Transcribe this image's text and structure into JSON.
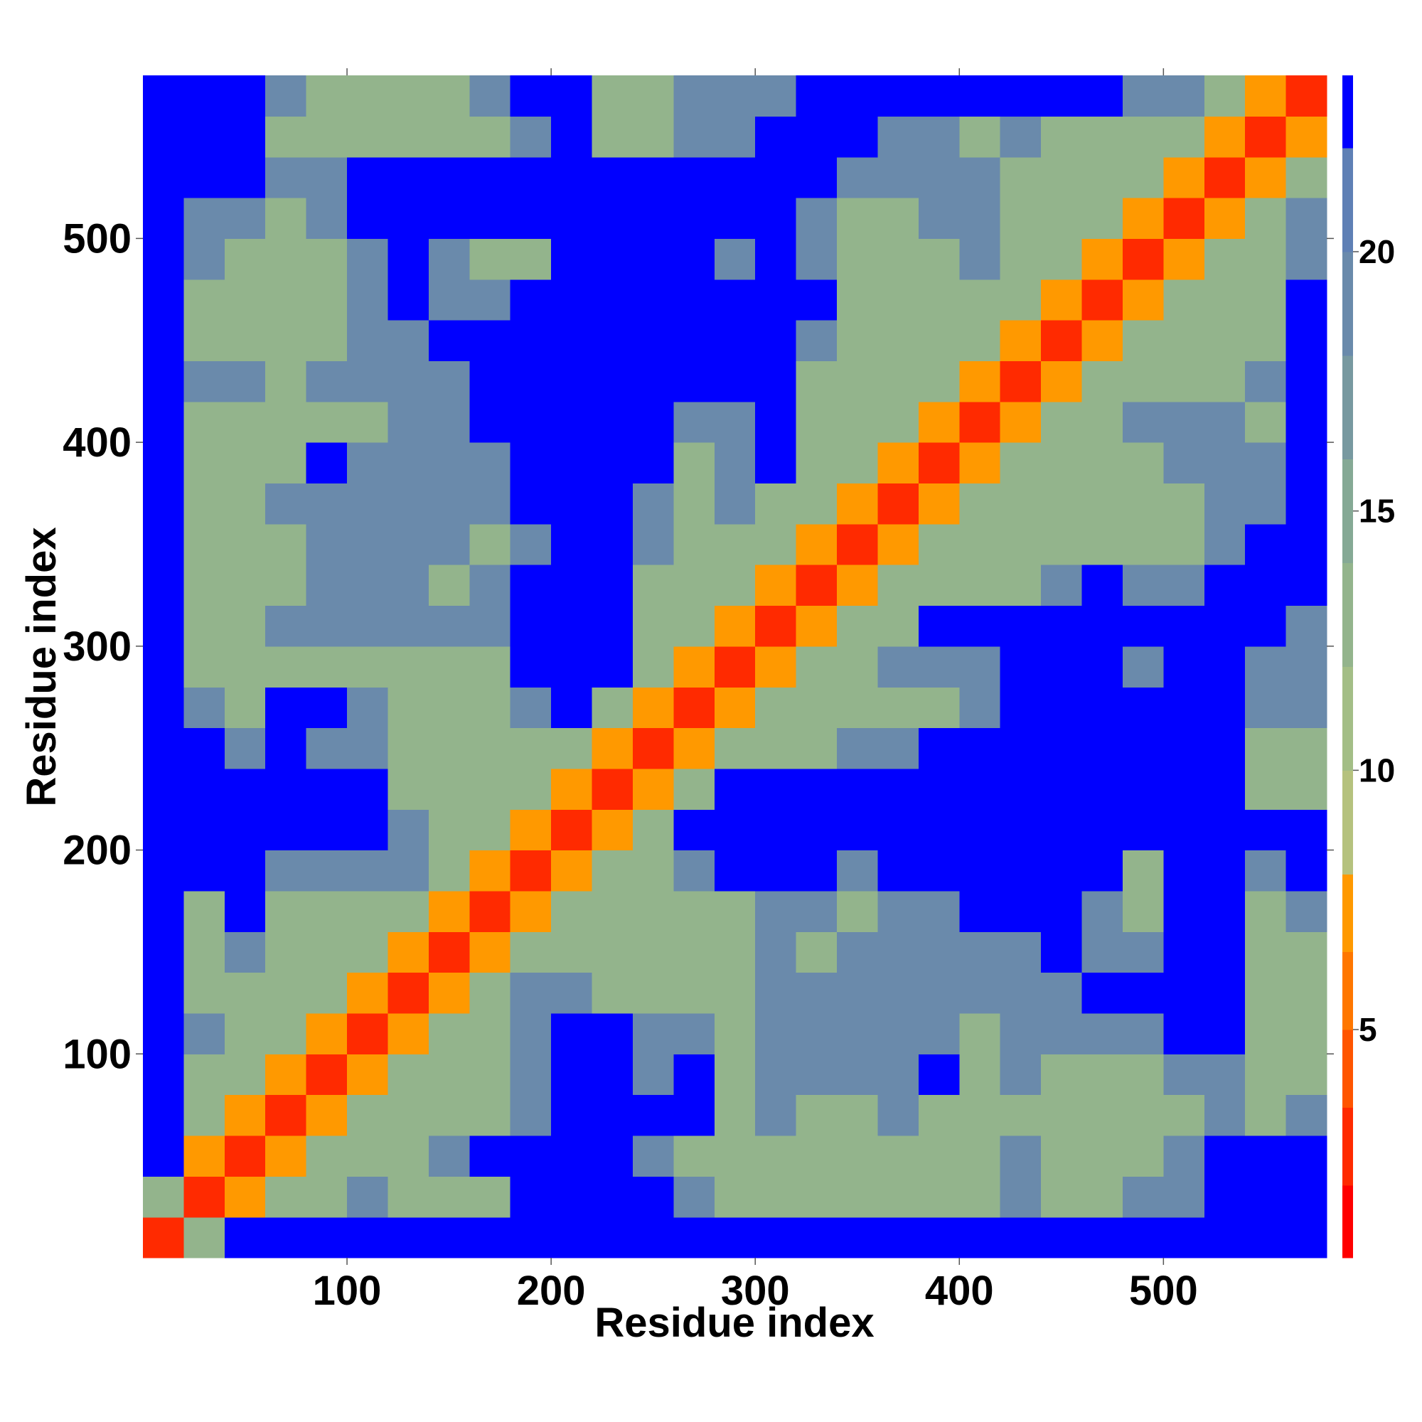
{
  "chart_data": {
    "type": "heatmap",
    "x_label": "Residue index",
    "y_label": "Residue index",
    "xlim": [
      0,
      580
    ],
    "ylim": [
      0,
      580
    ],
    "xticks": [
      100,
      200,
      300,
      400,
      500
    ],
    "yticks": [
      100,
      200,
      300,
      400,
      500
    ],
    "x_bins": [
      0,
      20,
      40,
      60,
      80,
      100,
      120,
      140,
      160,
      180,
      200,
      220,
      240,
      260,
      280,
      300,
      320,
      340,
      360,
      380,
      400,
      420,
      440,
      460,
      480,
      500,
      520,
      540,
      560,
      580
    ],
    "y_bins": [
      0,
      20,
      40,
      60,
      80,
      100,
      120,
      140,
      160,
      180,
      200,
      220,
      240,
      260,
      280,
      300,
      320,
      340,
      360,
      380,
      400,
      420,
      440,
      460,
      480,
      500,
      520,
      540,
      560,
      580
    ],
    "z": [
      [
        3,
        12,
        23,
        23,
        23,
        23,
        23,
        23,
        23,
        23,
        23,
        23,
        23,
        23,
        23,
        23,
        23,
        23,
        23,
        23,
        23,
        23,
        23,
        23,
        23,
        23,
        23,
        23,
        23
      ],
      [
        12,
        3,
        7,
        12,
        12,
        18,
        12,
        12,
        12,
        23,
        23,
        23,
        23,
        18,
        12,
        12,
        12,
        12,
        12,
        12,
        12,
        18,
        12,
        12,
        18,
        18,
        23,
        23,
        23
      ],
      [
        23,
        7,
        3,
        7,
        12,
        12,
        12,
        18,
        23,
        23,
        23,
        23,
        18,
        12,
        12,
        12,
        12,
        12,
        12,
        12,
        12,
        18,
        12,
        12,
        12,
        18,
        23,
        23,
        23
      ],
      [
        23,
        12,
        7,
        3,
        7,
        12,
        12,
        12,
        12,
        18,
        23,
        23,
        23,
        23,
        12,
        18,
        12,
        12,
        18,
        12,
        12,
        12,
        12,
        12,
        12,
        12,
        18,
        12,
        18
      ],
      [
        23,
        12,
        12,
        7,
        3,
        7,
        12,
        12,
        12,
        18,
        23,
        23,
        18,
        23,
        12,
        18,
        18,
        18,
        18,
        23,
        12,
        18,
        12,
        12,
        12,
        18,
        18,
        12,
        12
      ],
      [
        23,
        18,
        12,
        12,
        7,
        3,
        7,
        12,
        12,
        18,
        23,
        23,
        18,
        18,
        12,
        18,
        18,
        18,
        18,
        18,
        12,
        18,
        18,
        18,
        18,
        23,
        23,
        12,
        12
      ],
      [
        23,
        12,
        12,
        12,
        12,
        7,
        3,
        7,
        12,
        18,
        18,
        12,
        12,
        12,
        12,
        18,
        18,
        18,
        18,
        18,
        18,
        18,
        18,
        23,
        23,
        23,
        23,
        12,
        12
      ],
      [
        23,
        12,
        18,
        12,
        12,
        12,
        7,
        3,
        7,
        12,
        12,
        12,
        12,
        12,
        12,
        18,
        12,
        18,
        18,
        18,
        18,
        18,
        23,
        18,
        18,
        23,
        23,
        12,
        12
      ],
      [
        23,
        12,
        23,
        12,
        12,
        12,
        12,
        7,
        3,
        7,
        12,
        12,
        12,
        12,
        12,
        18,
        18,
        12,
        18,
        18,
        23,
        23,
        23,
        18,
        12,
        23,
        23,
        12,
        18
      ],
      [
        23,
        23,
        23,
        18,
        18,
        18,
        18,
        12,
        7,
        3,
        7,
        12,
        12,
        18,
        23,
        23,
        23,
        18,
        23,
        23,
        23,
        23,
        23,
        23,
        12,
        23,
        23,
        18,
        23
      ],
      [
        23,
        23,
        23,
        23,
        23,
        23,
        18,
        12,
        12,
        7,
        3,
        7,
        12,
        23,
        23,
        23,
        23,
        23,
        23,
        23,
        23,
        23,
        23,
        23,
        23,
        23,
        23,
        23,
        23
      ],
      [
        23,
        23,
        23,
        23,
        23,
        23,
        12,
        12,
        12,
        12,
        7,
        3,
        7,
        12,
        23,
        23,
        23,
        23,
        23,
        23,
        23,
        23,
        23,
        23,
        23,
        23,
        23,
        12,
        12
      ],
      [
        23,
        23,
        18,
        23,
        18,
        18,
        12,
        12,
        12,
        12,
        12,
        7,
        3,
        7,
        12,
        12,
        12,
        18,
        18,
        23,
        23,
        23,
        23,
        23,
        23,
        23,
        23,
        12,
        12
      ],
      [
        23,
        18,
        12,
        23,
        23,
        18,
        12,
        12,
        12,
        18,
        23,
        12,
        7,
        3,
        7,
        12,
        12,
        12,
        12,
        12,
        18,
        23,
        23,
        23,
        23,
        23,
        23,
        18,
        18
      ],
      [
        23,
        12,
        12,
        12,
        12,
        12,
        12,
        12,
        12,
        23,
        23,
        23,
        12,
        7,
        3,
        7,
        12,
        12,
        18,
        18,
        18,
        23,
        23,
        23,
        18,
        23,
        23,
        18,
        18
      ],
      [
        23,
        12,
        12,
        18,
        18,
        18,
        18,
        18,
        18,
        23,
        23,
        23,
        12,
        12,
        7,
        3,
        7,
        12,
        12,
        23,
        23,
        23,
        23,
        23,
        23,
        23,
        23,
        23,
        18
      ],
      [
        23,
        12,
        12,
        12,
        18,
        18,
        18,
        12,
        18,
        23,
        23,
        23,
        12,
        12,
        12,
        7,
        3,
        7,
        12,
        12,
        12,
        12,
        18,
        23,
        18,
        18,
        23,
        23,
        23
      ],
      [
        23,
        12,
        12,
        12,
        18,
        18,
        18,
        18,
        12,
        18,
        23,
        23,
        18,
        12,
        12,
        12,
        7,
        3,
        7,
        12,
        12,
        12,
        12,
        12,
        12,
        12,
        18,
        23,
        23
      ],
      [
        23,
        12,
        12,
        18,
        18,
        18,
        18,
        18,
        18,
        23,
        23,
        23,
        18,
        12,
        18,
        12,
        12,
        7,
        3,
        7,
        12,
        12,
        12,
        12,
        12,
        12,
        18,
        18,
        23
      ],
      [
        23,
        12,
        12,
        12,
        23,
        18,
        18,
        18,
        18,
        23,
        23,
        23,
        23,
        12,
        18,
        23,
        12,
        12,
        7,
        3,
        7,
        12,
        12,
        12,
        12,
        18,
        18,
        18,
        23
      ],
      [
        23,
        12,
        12,
        12,
        12,
        12,
        18,
        18,
        23,
        23,
        23,
        23,
        23,
        18,
        18,
        23,
        12,
        12,
        12,
        7,
        3,
        7,
        12,
        12,
        18,
        18,
        18,
        12,
        23
      ],
      [
        23,
        18,
        18,
        12,
        18,
        18,
        18,
        18,
        23,
        23,
        23,
        23,
        23,
        23,
        23,
        23,
        12,
        12,
        12,
        12,
        7,
        3,
        7,
        12,
        12,
        12,
        12,
        18,
        23
      ],
      [
        23,
        12,
        12,
        12,
        12,
        18,
        18,
        23,
        23,
        23,
        23,
        23,
        23,
        23,
        23,
        23,
        18,
        12,
        12,
        12,
        12,
        7,
        3,
        7,
        12,
        12,
        12,
        12,
        23
      ],
      [
        23,
        12,
        12,
        12,
        12,
        18,
        23,
        18,
        18,
        23,
        23,
        23,
        23,
        23,
        23,
        23,
        23,
        12,
        12,
        12,
        12,
        12,
        7,
        3,
        7,
        12,
        12,
        12,
        23
      ],
      [
        23,
        18,
        12,
        12,
        12,
        18,
        23,
        18,
        12,
        12,
        23,
        23,
        23,
        23,
        18,
        23,
        18,
        12,
        12,
        12,
        18,
        12,
        12,
        7,
        3,
        7,
        12,
        12,
        18
      ],
      [
        23,
        18,
        18,
        12,
        18,
        23,
        23,
        23,
        23,
        23,
        23,
        23,
        23,
        23,
        23,
        23,
        18,
        12,
        12,
        18,
        18,
        12,
        12,
        12,
        7,
        3,
        7,
        12,
        18
      ],
      [
        23,
        23,
        23,
        18,
        18,
        23,
        23,
        23,
        23,
        23,
        23,
        23,
        23,
        23,
        23,
        23,
        23,
        18,
        18,
        18,
        18,
        12,
        12,
        12,
        12,
        7,
        3,
        7,
        12
      ],
      [
        23,
        23,
        23,
        12,
        12,
        12,
        12,
        12,
        12,
        18,
        23,
        12,
        12,
        18,
        18,
        23,
        23,
        23,
        18,
        18,
        12,
        18,
        12,
        12,
        12,
        12,
        7,
        3,
        7
      ],
      [
        23,
        23,
        23,
        18,
        12,
        12,
        12,
        12,
        18,
        23,
        23,
        12,
        12,
        18,
        18,
        18,
        23,
        23,
        23,
        23,
        23,
        23,
        23,
        23,
        18,
        18,
        12,
        7,
        3
      ]
    ],
    "colorbar": {
      "levels": [
        0.6,
        2,
        3.5,
        5,
        6.5,
        8,
        10,
        12,
        14,
        16,
        18,
        20,
        22,
        23.4
      ],
      "colors": [
        "#ff0000",
        "#ff2a00",
        "#ff5500",
        "#ff7700",
        "#ff9900",
        "#b5c27e",
        "#a3be86",
        "#93b48c",
        "#85a995",
        "#7899a0",
        "#6a8aab",
        "#5f80b5",
        "#0000ff"
      ],
      "ticks": [
        5,
        10,
        15,
        20
      ]
    }
  }
}
